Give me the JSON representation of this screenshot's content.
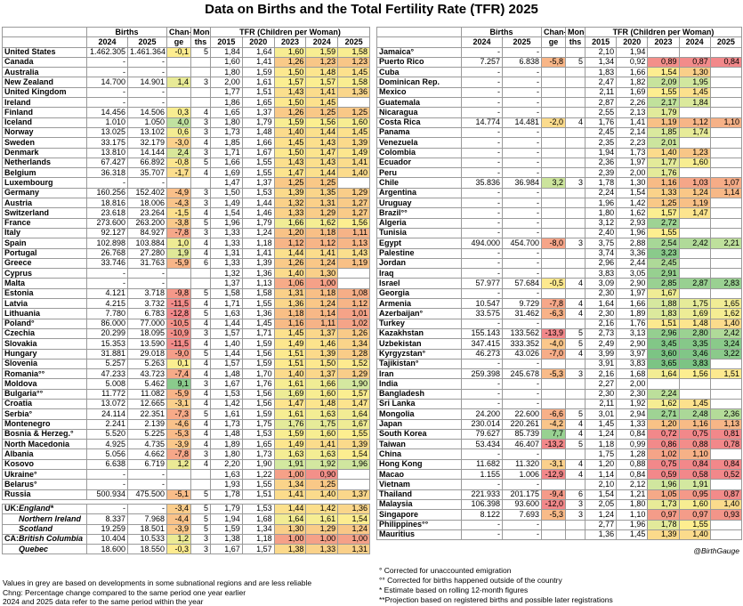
{
  "title": "Data on Births and the Total Fertility Rate (TFR) 2025",
  "header": {
    "row1": [
      null,
      "Births",
      "Chan-",
      "Mon-",
      "TFR (Children per Woman)"
    ],
    "row2": [
      null,
      "2024",
      "2025",
      "ge",
      "ths",
      "2015",
      "2020",
      "2023",
      "2024",
      "2025"
    ]
  },
  "left": {
    "rows": [
      [
        "United States",
        "1.462.305",
        "1.461.364",
        "-0,1",
        "5",
        "1,84",
        "1,64",
        "1,60",
        "1,59",
        "1,58"
      ],
      [
        "Canada",
        "-",
        "-",
        null,
        null,
        "1,60",
        "1,41",
        "1,26",
        "1,23",
        "1,23"
      ],
      [
        "Australia",
        "-",
        "-",
        null,
        null,
        "1,80",
        "1,59",
        "1,50",
        "1,48",
        "1,45"
      ],
      [
        "New Zealand",
        "14.700",
        "14.901",
        "1,4",
        "3",
        "2,00",
        "1,61",
        "1,57",
        "1,57",
        "1,58"
      ],
      [
        "United Kingdom",
        "-",
        "-",
        null,
        null,
        "1,77",
        "1,51",
        "1,43",
        "1,41",
        "1,36"
      ],
      [
        "Ireland",
        "-",
        "-",
        null,
        null,
        "1,86",
        "1,65",
        "1,50",
        "1,45",
        null
      ],
      [
        "Finland",
        "14.456",
        "14.506",
        "0,3",
        "4",
        "1,65",
        "1,37",
        "1,26",
        "1,25",
        "1,25"
      ],
      [
        "Iceland",
        "1.010",
        "1.050",
        "4,0",
        "3",
        "1,80",
        "1,79",
        "1,59",
        "1,56",
        "1,60"
      ],
      [
        "Norway",
        "13.025",
        "13.102",
        "0,6",
        "3",
        "1,73",
        "1,48",
        "1,40",
        "1,44",
        "1,45"
      ],
      [
        "Sweden",
        "33.175",
        "32.179",
        "-3,0",
        "4",
        "1,85",
        "1,66",
        "1,45",
        "1,43",
        "1,39"
      ],
      [
        "Denmark",
        "13.810",
        "14.144",
        "2,4",
        "3",
        "1,71",
        "1,67",
        "1,50",
        "1,47",
        "1,49"
      ],
      [
        "Netherlands",
        "67.427",
        "66.892",
        "-0,8",
        "5",
        "1,66",
        "1,55",
        "1,43",
        "1,43",
        "1,41"
      ],
      [
        "Belgium",
        "36.318",
        "35.707",
        "-1,7",
        "4",
        "1,69",
        "1,55",
        "1,47",
        "1,44",
        "1,40"
      ],
      [
        "Luxembourg",
        "-",
        "-",
        null,
        null,
        "1,47",
        "1,37",
        "1,25",
        "1,25",
        null
      ],
      [
        "Germany",
        "160.256",
        "152.402",
        "-4,9",
        "3",
        "1,50",
        "1,53",
        "1,39",
        "1,35",
        "1,29"
      ],
      [
        "Austria",
        "18.816",
        "18.006",
        "-4,3",
        "3",
        "1,49",
        "1,44",
        "1,32",
        "1,31",
        "1,27"
      ],
      [
        "Switzerland",
        "23.618",
        "23.264",
        "-1,5",
        "4",
        "1,54",
        "1,46",
        "1,33",
        "1,29",
        "1,27"
      ],
      [
        "France",
        "273.600",
        "263.200",
        "-3,8",
        "5",
        "1,96",
        "1,79",
        "1,66",
        "1,62",
        "1,56"
      ],
      [
        "Italy",
        "92.127",
        "84.927",
        "-7,8",
        "3",
        "1,33",
        "1,24",
        "1,20",
        "1,18",
        "1,11"
      ],
      [
        "Spain",
        "102.898",
        "103.884",
        "1,0",
        "4",
        "1,33",
        "1,18",
        "1,12",
        "1,12",
        "1,13"
      ],
      [
        "Portugal",
        "26.768",
        "27.280",
        "1,9",
        "4",
        "1,31",
        "1,41",
        "1,44",
        "1,41",
        "1,43"
      ],
      [
        "Greece",
        "33.746",
        "31.763",
        "-5,9",
        "6",
        "1,33",
        "1,39",
        "1,26",
        "1,24",
        "1,19"
      ],
      [
        "Cyprus",
        "-",
        "-",
        null,
        null,
        "1,32",
        "1,36",
        "1,40",
        "1,30",
        null
      ],
      [
        "Malta",
        "-",
        "-",
        null,
        null,
        "1,37",
        "1,13",
        "1,06",
        "1,00",
        null
      ],
      [
        "Estonia",
        "4.121",
        "3.718",
        "-9,8",
        "5",
        "1,58",
        "1,58",
        "1,31",
        "1,18",
        "1,08"
      ],
      [
        "Latvia",
        "4.215",
        "3.732",
        "-11,5",
        "4",
        "1,71",
        "1,55",
        "1,36",
        "1,24",
        "1,12"
      ],
      [
        "Lithuania",
        "7.780",
        "6.783",
        "-12,8",
        "5",
        "1,63",
        "1,36",
        "1,18",
        "1,14",
        "1,01"
      ],
      [
        "Poland°",
        "86.000",
        "77.000",
        "-10,5",
        "4",
        "1,44",
        "1,45",
        "1,16",
        "1,11",
        "1,02"
      ],
      [
        "Czechia",
        "20.299",
        "18.095",
        "-10,9",
        "3",
        "1,57",
        "1,71",
        "1,45",
        "1,37",
        "1,26"
      ],
      [
        "Slovakia",
        "15.353",
        "13.590",
        "-11,5",
        "4",
        "1,40",
        "1,59",
        "1,49",
        "1,46",
        "1,34"
      ],
      [
        "Hungary",
        "31.881",
        "29.018",
        "-9,0",
        "5",
        "1,44",
        "1,56",
        "1,51",
        "1,39",
        "1,28"
      ],
      [
        "Slovenia",
        "5.257",
        "5.263",
        "0,1",
        "4",
        "1,57",
        "1,59",
        "1,51",
        "1,50",
        "1,52"
      ],
      [
        "Romania°°",
        "47.233",
        "43.723",
        "-7,4",
        "4",
        "1,48",
        "1,70",
        "1,40",
        "1,37",
        "1,29"
      ],
      [
        "Moldova",
        "5.008",
        "5.462",
        "9,1",
        "3",
        "1,67",
        "1,76",
        "1,61",
        "1,66",
        "1,90"
      ],
      [
        "Bulgaria°°",
        "11.772",
        "11.082",
        "-5,9",
        "4",
        "1,53",
        "1,56",
        "1,69",
        "1,60",
        "1,57"
      ],
      [
        "Croatia",
        "13.072",
        "12.665",
        "-3,1",
        "4",
        "1,42",
        "1,56",
        "1,47",
        "1,48",
        "1,47"
      ],
      [
        "Serbia°",
        "24.114",
        "22.351",
        "-7,3",
        "5",
        "1,61",
        "1,59",
        "1,61",
        "1,63",
        "1,64"
      ],
      [
        "Montenegro",
        "2.241",
        "2.139",
        "-4,6",
        "4",
        "1,73",
        "1,75",
        "1,76",
        "1,75",
        "1,67"
      ],
      [
        "Bosnia & Herzeg.°",
        "5.520",
        "5.225",
        "-5,3",
        "4",
        "1,48",
        "1,53",
        "1,59",
        "1,60",
        "1,55"
      ],
      [
        "North Macedonia",
        "4.925",
        "4.735",
        "-3,9",
        "4",
        "1,89",
        "1,65",
        "1,49",
        "1,41",
        "1,39"
      ],
      [
        "Albania",
        "5.056",
        "4.662",
        "-7,8",
        "3",
        "1,80",
        "1,73",
        "1,63",
        "1,63",
        "1,54"
      ],
      [
        "Kosovo",
        "6.638",
        "6.719",
        "1,2",
        "4",
        "2,20",
        "1,90",
        "1,91",
        "1,92",
        "1,96"
      ],
      [
        "Ukraine°",
        "-",
        "-",
        null,
        null,
        "1,63",
        "1,22",
        "1,00",
        "0,90",
        null
      ],
      [
        "Belarus°",
        "-",
        "-",
        null,
        null,
        "1,93",
        "1,55",
        "1,34",
        "1,25",
        null
      ],
      [
        "Russia",
        "500.934",
        "475.500",
        "-5,1",
        "5",
        "1,78",
        "1,51",
        "1,41",
        "1,40",
        "1,37"
      ]
    ],
    "regions": [
      {
        "group": "UK:",
        "rows": [
          [
            "England*",
            "-",
            "-",
            "-3,4",
            "5",
            "1,79",
            "1,53",
            "1,44",
            "1,42",
            "1,36"
          ],
          [
            "Northern Ireland",
            "8.337",
            "7.968",
            "-4,4",
            "5",
            "1,94",
            "1,68",
            "1,64",
            "1,61",
            "1,54"
          ],
          [
            "Scotland",
            "19.259",
            "18.501",
            "-3,9",
            "5",
            "1,59",
            "1,34",
            "1,30",
            "1,29",
            "1,24"
          ]
        ]
      },
      {
        "group": "CA:",
        "rows": [
          [
            "British Columbia",
            "10.404",
            "10.533",
            "1,2",
            "3",
            "1,38",
            "1,18",
            "1,00",
            "1,00",
            "1,00"
          ],
          [
            "Quebec",
            "18.600",
            "18.550",
            "-0,3",
            "3",
            "1,67",
            "1,57",
            "1,38",
            "1,33",
            "1,31"
          ]
        ]
      }
    ],
    "notes": [
      "Values in grey are based on developments in some subnational regions and are less reliable",
      "Chng: Percentage change compared to the same period one year earlier",
      "2024 and 2025 data refer to the same period within the year"
    ]
  },
  "right": {
    "rows": [
      [
        "Jamaica°",
        "-",
        "-",
        null,
        null,
        "2,10",
        "1,94",
        null,
        null,
        null
      ],
      [
        "Puerto Rico",
        "7.257",
        "6.838",
        "-5,8",
        "5",
        "1,34",
        "0,92",
        "0,89",
        "0,87",
        "0,84"
      ],
      [
        "Cuba",
        "-",
        "-",
        null,
        null,
        "1,83",
        "1,66",
        "1,54",
        "1,30",
        null
      ],
      [
        "Dominican Rep.",
        "-",
        "-",
        null,
        null,
        "2,47",
        "1,82",
        "2,09",
        "1,95",
        null
      ],
      [
        "Mexico",
        "-",
        "-",
        null,
        null,
        "2,11",
        "1,69",
        "1,55",
        "1,45",
        null
      ],
      [
        "Guatemala",
        "-",
        "-",
        null,
        null,
        "2,87",
        "2,26",
        "2,17",
        "1,84",
        null
      ],
      [
        "Nicaragua",
        "-",
        "-",
        null,
        null,
        "2,55",
        "2,13",
        "1,79",
        null,
        null
      ],
      [
        "Costa Rica",
        "14.774",
        "14.481",
        "-2,0",
        "4",
        "1,76",
        "1,41",
        "1,19",
        "1,12",
        "1,10"
      ],
      [
        "Panama",
        "-",
        "-",
        null,
        null,
        "2,45",
        "2,14",
        "1,85",
        "1,74",
        null
      ],
      [
        "Venezuela",
        "-",
        "-",
        null,
        null,
        "2,35",
        "2,23",
        "2,01",
        null,
        null
      ],
      [
        "Colombia",
        "-",
        "-",
        null,
        null,
        "1,94",
        "1,73",
        "1,40",
        "1,23",
        null
      ],
      [
        "Ecuador",
        "-",
        "-",
        null,
        null,
        "2,36",
        "1,97",
        "1,77",
        "1,60",
        null
      ],
      [
        "Peru",
        "-",
        "-",
        null,
        null,
        "2,39",
        "2,00",
        "1,76",
        null,
        null
      ],
      [
        "Chile",
        "35.836",
        "36.984",
        "3,2",
        "3",
        "1,78",
        "1,30",
        "1,16",
        "1,03",
        "1,07"
      ],
      [
        "Argentina",
        "-",
        "-",
        null,
        null,
        "2,24",
        "1,54",
        "1,33",
        "1,24",
        "1,14"
      ],
      [
        "Uruguay",
        "-",
        "-",
        null,
        null,
        "1,96",
        "1,42",
        "1,25",
        "1,19",
        null
      ],
      [
        "Brazil°°",
        "-",
        "-",
        null,
        null,
        "1,80",
        "1,62",
        "1,57",
        "1,47",
        null
      ],
      [
        "Algeria",
        "-",
        "-",
        null,
        null,
        "3,12",
        "2,93",
        "2,72",
        null,
        null
      ],
      [
        "Tunisia",
        "-",
        "-",
        null,
        null,
        "2,40",
        "1,96",
        "1,55",
        null,
        null
      ],
      [
        "Egypt",
        "494.000",
        "454.700",
        "-8,0",
        "3",
        "3,75",
        "2,88",
        "2,54",
        "2,42",
        "2,21"
      ],
      [
        "Palestine",
        "-",
        "-",
        null,
        null,
        "3,74",
        "3,36",
        "3,23",
        null,
        null
      ],
      [
        "Jordan",
        "-",
        "-",
        null,
        null,
        "2,96",
        "2,44",
        "2,45",
        null,
        null
      ],
      [
        "Iraq",
        "-",
        "-",
        null,
        null,
        "3,83",
        "3,05",
        "2,91",
        null,
        null
      ],
      [
        "Israel",
        "57.977",
        "57.684",
        "-0,5",
        "4",
        "3,09",
        "2,90",
        "2,85",
        "2,87",
        "2,83"
      ],
      [
        "Georgia",
        "-",
        "-",
        null,
        null,
        "2,30",
        "1,97",
        "1,67",
        null,
        null
      ],
      [
        "Armenia",
        "10.547",
        "9.729",
        "-7,8",
        "4",
        "1,64",
        "1,66",
        "1,88",
        "1,75",
        "1,65"
      ],
      [
        "Azerbaijan°",
        "33.575",
        "31.462",
        "-6,3",
        "4",
        "2,30",
        "1,89",
        "1,83",
        "1,69",
        "1,62"
      ],
      [
        "Turkey",
        "-",
        "-",
        null,
        null,
        "2,16",
        "1,76",
        "1,51",
        "1,48",
        "1,40"
      ],
      [
        "Kazakhstan",
        "155.143",
        "133.562",
        "-13,9",
        "5",
        "2,73",
        "3,13",
        "2,96",
        "2,80",
        "2,42"
      ],
      [
        "Uzbekistan",
        "347.415",
        "333.352",
        "-4,0",
        "5",
        "2,49",
        "2,90",
        "3,45",
        "3,35",
        "3,24"
      ],
      [
        "Kyrgyzstan°",
        "46.273",
        "43.026",
        "-7,0",
        "4",
        "3,99",
        "3,97",
        "3,60",
        "3,46",
        "3,22"
      ],
      [
        "Tajikistan°",
        "-",
        "-",
        null,
        null,
        "3,91",
        "3,83",
        "3,65",
        "3,83",
        null
      ],
      [
        "Iran",
        "259.398",
        "245.678",
        "-5,3",
        "3",
        "2,16",
        "1,68",
        "1,64",
        "1,56",
        "1,51"
      ],
      [
        "India",
        "-",
        "-",
        null,
        null,
        "2,27",
        "2,00",
        null,
        null,
        null
      ],
      [
        "Bangladesh",
        "-",
        "-",
        null,
        null,
        "2,30",
        "2,30",
        "2,24",
        null,
        null
      ],
      [
        "Sri Lanka",
        "-",
        "-",
        null,
        null,
        "2,11",
        "1,92",
        "1,62",
        "1,45",
        null
      ],
      [
        "Mongolia",
        "24.200",
        "22.600",
        "-6,6",
        "5",
        "3,01",
        "2,94",
        "2,71",
        "2,48",
        "2,36"
      ],
      [
        "Japan",
        "230.014",
        "220.261",
        "-4,2",
        "4",
        "1,45",
        "1,33",
        "1,20",
        "1,16",
        "1,13"
      ],
      [
        "South Korea",
        "79.627",
        "85.739",
        "7,7",
        "4",
        "1,24",
        "0,84",
        "0,72",
        "0,75",
        "0,81"
      ],
      [
        "Taiwan",
        "53.434",
        "46.407",
        "-13,2",
        "5",
        "1,18",
        "0,99",
        "0,86",
        "0,88",
        "0,78"
      ],
      [
        "China",
        "-",
        "-",
        null,
        null,
        "1,75",
        "1,28",
        "1,02",
        "1,10",
        null
      ],
      [
        "Hong Kong",
        "11.682",
        "11.320",
        "-3,1",
        "4",
        "1,20",
        "0,88",
        "0,75",
        "0,84",
        "0,84"
      ],
      [
        "Macao",
        "1.155",
        "1.006",
        "-12,9",
        "4",
        "1,14",
        "0,84",
        "0,59",
        "0,58",
        "0,52"
      ],
      [
        "Vietnam",
        "-",
        "-",
        null,
        null,
        "2,10",
        "2,12",
        "1,96",
        "1,91",
        null
      ],
      [
        "Thailand",
        "221.933",
        "201.175",
        "-9,4",
        "6",
        "1,54",
        "1,21",
        "1,05",
        "0,95",
        "0,87"
      ],
      [
        "Malaysia",
        "106.398",
        "93.600",
        "-12,0",
        "3",
        "2,05",
        "1,80",
        "1,73",
        "1,60",
        "1,40"
      ],
      [
        "Singapore",
        "8.122",
        "7.693",
        "-5,3",
        "3",
        "1,24",
        "1,10",
        "0,97",
        "0,97",
        "0,93"
      ],
      [
        "Philippines°°",
        "-",
        "-",
        null,
        null,
        "2,77",
        "1,96",
        "1,78",
        "1,55",
        null
      ],
      [
        "Mauritius",
        "-",
        "-",
        null,
        null,
        "1,36",
        "1,45",
        "1,39",
        "1,40",
        null
      ]
    ],
    "credit": "@BirthGauge",
    "notes": [
      "° Corrected for unaccounted emigration",
      "°° Corrected for births happened outside of the country",
      "* Estimate based on rolling 12-month figures",
      "**Projection based on registered births and possible later registrations"
    ]
  }
}
